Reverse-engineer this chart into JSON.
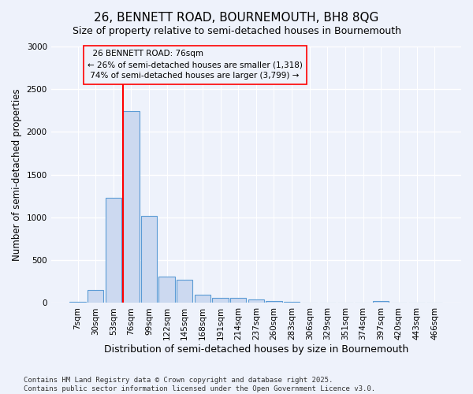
{
  "title": "26, BENNETT ROAD, BOURNEMOUTH, BH8 8QG",
  "subtitle": "Size of property relative to semi-detached houses in Bournemouth",
  "xlabel": "Distribution of semi-detached houses by size in Bournemouth",
  "ylabel": "Number of semi-detached properties",
  "footer": "Contains HM Land Registry data © Crown copyright and database right 2025.\nContains public sector information licensed under the Open Government Licence v3.0.",
  "bar_labels": [
    "7sqm",
    "30sqm",
    "53sqm",
    "76sqm",
    "99sqm",
    "122sqm",
    "145sqm",
    "168sqm",
    "191sqm",
    "214sqm",
    "237sqm",
    "260sqm",
    "283sqm",
    "306sqm",
    "329sqm",
    "351sqm",
    "374sqm",
    "397sqm",
    "420sqm",
    "443sqm",
    "466sqm"
  ],
  "bar_values": [
    15,
    150,
    1230,
    2240,
    1020,
    310,
    275,
    95,
    60,
    55,
    40,
    25,
    10,
    0,
    0,
    0,
    0,
    20,
    0,
    0,
    0
  ],
  "bar_color": "#ccd9f0",
  "bar_edge_color": "#5b9bd5",
  "ylim": [
    0,
    3000
  ],
  "yticks": [
    0,
    500,
    1000,
    1500,
    2000,
    2500,
    3000
  ],
  "property_label": "26 BENNETT ROAD: 76sqm",
  "pct_smaller": 26,
  "count_smaller": 1318,
  "pct_larger": 74,
  "count_larger": 3799,
  "vline_x_index": 3,
  "background_color": "#eef2fb",
  "grid_color": "#ffffff",
  "annotation_font_size": 7.5,
  "title_fontsize": 11,
  "subtitle_fontsize": 9,
  "xlabel_fontsize": 9,
  "ylabel_fontsize": 8.5,
  "tick_fontsize": 7.5,
  "footer_fontsize": 6.5
}
